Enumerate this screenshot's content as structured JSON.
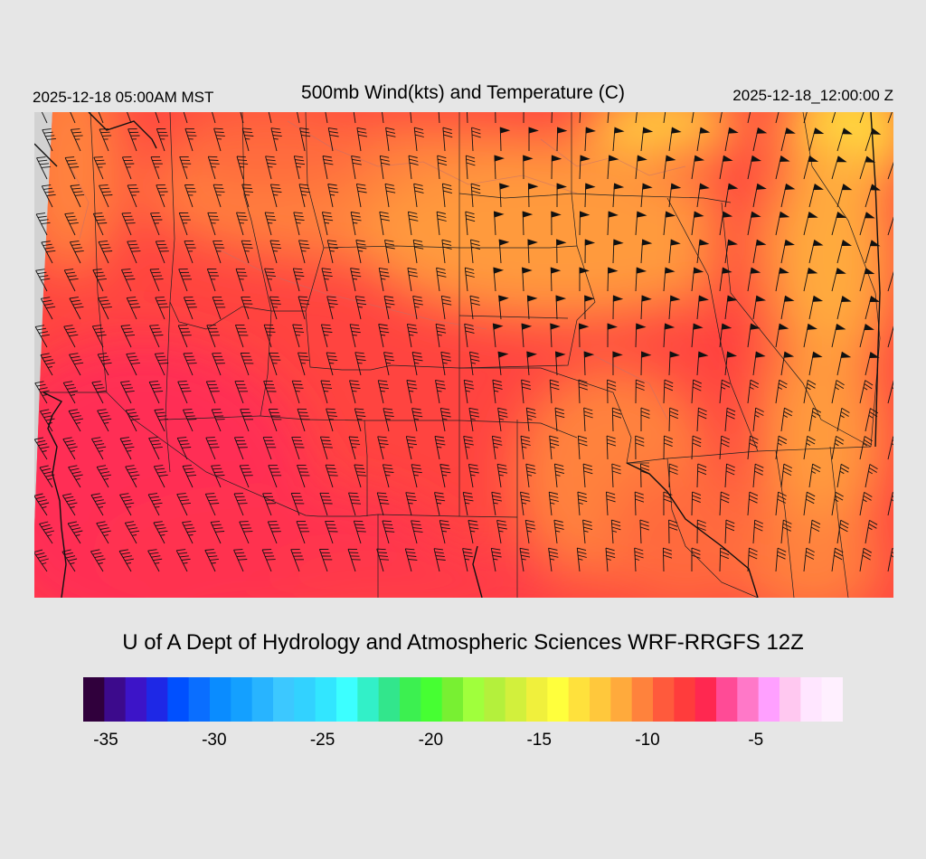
{
  "header": {
    "left_time": "2025-12-18 05:00AM MST",
    "title": "500mb Wind(kts) and Temperature (C)",
    "right_time": "2025-12-18_12:00:00 Z"
  },
  "credit": "U of A Dept of Hydrology and Atmospheric Sciences WRF-RRGFS 12Z",
  "colorbar": {
    "colors": [
      "#30003c",
      "#3c0a8c",
      "#3c14c8",
      "#1e28e6",
      "#0050ff",
      "#0a6eff",
      "#0a8cff",
      "#14a0ff",
      "#28b4ff",
      "#3cc8ff",
      "#32d2ff",
      "#32e6ff",
      "#3cffff",
      "#32f0c8",
      "#32e68c",
      "#3cf050",
      "#46ff32",
      "#78f032",
      "#a0ff3c",
      "#b4f03c",
      "#d2f03c",
      "#f0f03c",
      "#ffff3c",
      "#ffe13c",
      "#ffc83c",
      "#ffaa3c",
      "#ff823c",
      "#ff5a3c",
      "#ff3c3c",
      "#ff2850",
      "#ff4b96",
      "#ff78c8",
      "#ffa0ff",
      "#ffc8f0",
      "#ffe6ff",
      "#fff0ff"
    ],
    "tick_labels": [
      "-35",
      "-30",
      "-25",
      "-20",
      "-15",
      "-10",
      "-5"
    ]
  },
  "map": {
    "field": "500mb temperature (C) with wind barbs (kts)",
    "region": "Western and Central United States"
  }
}
